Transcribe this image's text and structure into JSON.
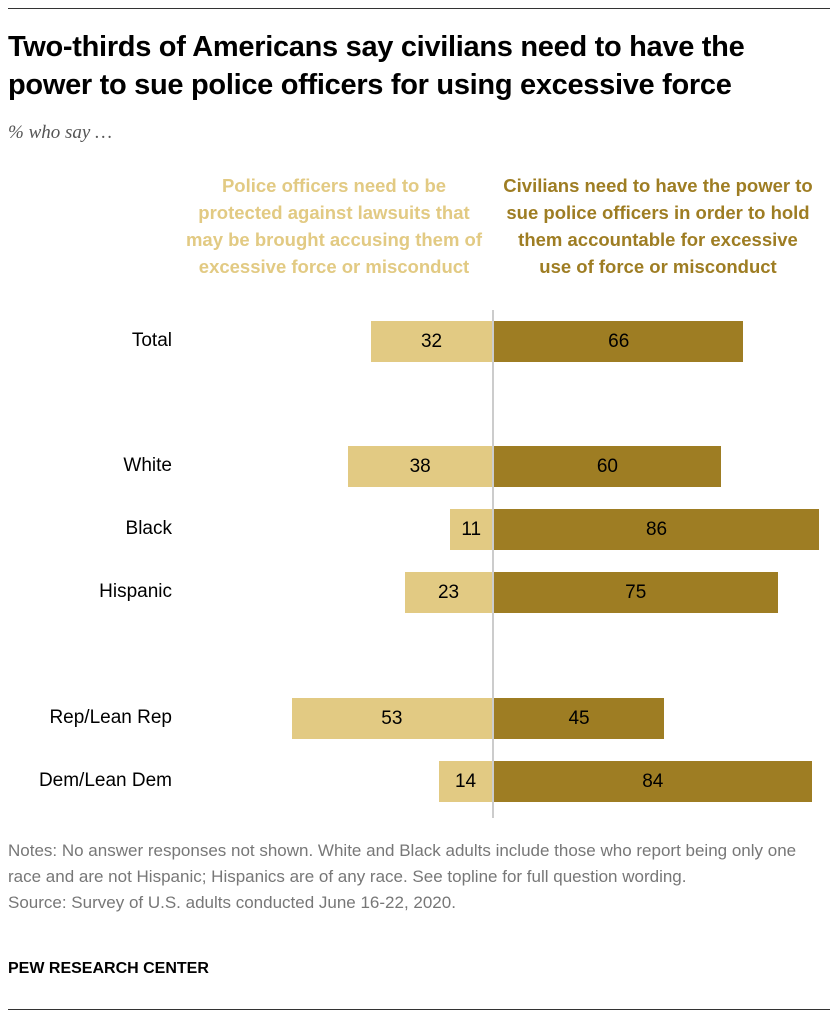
{
  "title": "Two-thirds of Americans say civilians need to have the power to sue police officers for using excessive force",
  "subtitle": "% who say …",
  "notes": "Notes: No answer responses not shown. White and Black adults include those who report being only one race and are not Hispanic; Hispanics are of any race. See topline for full question wording.",
  "source": "Source: Survey of U.S. adults conducted June 16-22, 2020.",
  "brand": "PEW RESEARCH CENTER",
  "colors": {
    "protect": "#E2CA83",
    "sue": "#9E7D23",
    "axis": "#cccccc"
  },
  "chart_data": {
    "type": "bar",
    "orientation": "horizontal-diverging",
    "categories": [
      "Total",
      "White",
      "Black",
      "Hispanic",
      "Rep/Lean Rep",
      "Dem/Lean Dem"
    ],
    "series": [
      {
        "name": "Police officers need to be protected against lawsuits that may be brought accusing them of excessive force or misconduct",
        "values": [
          32,
          38,
          11,
          23,
          53,
          14
        ]
      },
      {
        "name": "Civilians need to have the power to sue police officers in order to hold them accountable for excessive use of force or misconduct",
        "values": [
          66,
          60,
          86,
          75,
          45,
          84
        ]
      }
    ],
    "xlim": [
      -55,
      88
    ],
    "grid": false,
    "legend": "top"
  }
}
